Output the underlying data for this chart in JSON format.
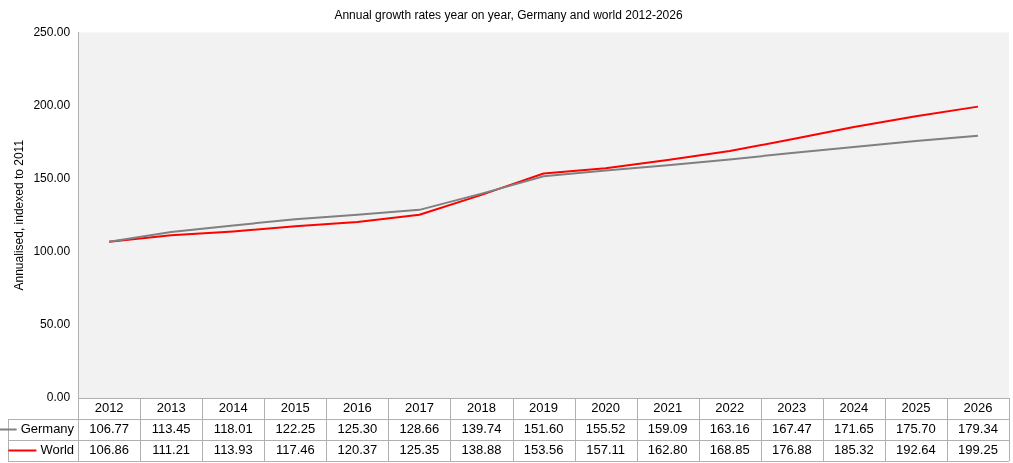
{
  "chart_data": {
    "type": "line",
    "title": "Annual growth rates year on year, Germany and world 2012-2026",
    "ylabel": "Annualised, indexed to 2011",
    "categories": [
      "2012",
      "2013",
      "2014",
      "2015",
      "2016",
      "2017",
      "2018",
      "2019",
      "2020",
      "2021",
      "2022",
      "2023",
      "2024",
      "2025",
      "2026"
    ],
    "series": [
      {
        "name": "Germany",
        "color": "#808080",
        "values": [
          106.77,
          113.45,
          118.01,
          122.25,
          125.3,
          128.66,
          139.74,
          151.6,
          155.52,
          159.09,
          163.16,
          167.47,
          171.65,
          175.7,
          179.34
        ],
        "value_labels": [
          "106.77",
          "113.45",
          "118.01",
          "122.25",
          "125.30",
          "128.66",
          "139.74",
          "151.60",
          "155.52",
          "159.09",
          "163.16",
          "167.47",
          "171.65",
          "175.70",
          "179.34"
        ]
      },
      {
        "name": "World",
        "color": "#ff0000",
        "values": [
          106.86,
          111.21,
          113.93,
          117.46,
          120.37,
          125.35,
          138.88,
          153.56,
          157.11,
          162.8,
          168.85,
          176.88,
          185.32,
          192.64,
          199.25
        ],
        "value_labels": [
          "106.86",
          "111.21",
          "113.93",
          "117.46",
          "120.37",
          "125.35",
          "138.88",
          "153.56",
          "157.11",
          "162.80",
          "168.85",
          "176.88",
          "185.32",
          "192.64",
          "199.25"
        ]
      }
    ],
    "ylim": [
      0,
      250
    ],
    "yticks": [
      {
        "value": 0,
        "label": "0.00"
      },
      {
        "value": 50,
        "label": "50.00"
      },
      {
        "value": 100,
        "label": "100.00"
      },
      {
        "value": 150,
        "label": "150.00"
      },
      {
        "value": 200,
        "label": "200.00"
      },
      {
        "value": 250,
        "label": "250.00"
      }
    ],
    "grid": false,
    "legend": "bottom",
    "marker": "none",
    "line_style": "solid"
  }
}
